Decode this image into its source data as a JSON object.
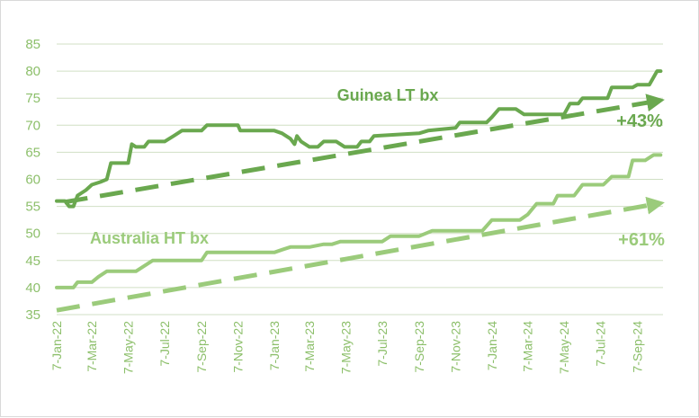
{
  "colors": {
    "guinea": "#6aa84f",
    "australia": "#9bcb7b",
    "axis_text": "#8cbf6a",
    "grid": "#d0dfc4"
  },
  "chart_data": {
    "type": "line",
    "title": "",
    "xlabel": "",
    "ylabel": "",
    "ylim": [
      35,
      85
    ],
    "yticks": [
      35,
      40,
      45,
      50,
      55,
      60,
      65,
      70,
      75,
      80,
      85
    ],
    "x_start": "2022-01-07",
    "x_end": "2024-10-20",
    "xtick_labels": [
      "7-Jan-22",
      "7-Mar-22",
      "7-May-22",
      "7-Jul-22",
      "7-Sep-22",
      "7-Nov-22",
      "7-Jan-23",
      "7-Mar-23",
      "7-May-23",
      "7-Jul-23",
      "7-Sep-23",
      "7-Nov-23",
      "7-Jan-24",
      "7-Mar-24",
      "7-May-24",
      "7-Jul-24",
      "7-Sep-24"
    ],
    "xtick_dates": [
      "2022-01-07",
      "2022-03-07",
      "2022-05-07",
      "2022-07-07",
      "2022-09-07",
      "2022-11-07",
      "2023-01-07",
      "2023-03-07",
      "2023-05-07",
      "2023-07-07",
      "2023-09-07",
      "2023-11-07",
      "2024-01-07",
      "2024-03-07",
      "2024-05-07",
      "2024-07-07",
      "2024-09-07"
    ],
    "grid": "horizontal",
    "series": [
      {
        "name": "Guinea LT bx",
        "color": "#6aa84f",
        "points": [
          [
            "2022-01-07",
            56
          ],
          [
            "2022-01-21",
            56
          ],
          [
            "2022-01-28",
            55
          ],
          [
            "2022-02-04",
            55
          ],
          [
            "2022-02-11",
            57
          ],
          [
            "2022-02-25",
            58
          ],
          [
            "2022-03-07",
            59
          ],
          [
            "2022-03-21",
            59.5
          ],
          [
            "2022-04-01",
            60
          ],
          [
            "2022-04-08",
            63
          ],
          [
            "2022-05-07",
            63
          ],
          [
            "2022-05-13",
            66.5
          ],
          [
            "2022-05-20",
            66
          ],
          [
            "2022-06-03",
            66
          ],
          [
            "2022-06-10",
            67
          ],
          [
            "2022-07-07",
            67
          ],
          [
            "2022-07-22",
            68
          ],
          [
            "2022-08-05",
            69
          ],
          [
            "2022-09-07",
            69
          ],
          [
            "2022-09-16",
            70
          ],
          [
            "2022-11-07",
            70
          ],
          [
            "2022-11-11",
            69
          ],
          [
            "2023-01-07",
            69
          ],
          [
            "2023-01-20",
            68.5
          ],
          [
            "2023-02-03",
            67.5
          ],
          [
            "2023-02-10",
            66.5
          ],
          [
            "2023-02-14",
            68
          ],
          [
            "2023-02-21",
            67
          ],
          [
            "2023-03-07",
            66
          ],
          [
            "2023-03-21",
            66
          ],
          [
            "2023-03-31",
            67
          ],
          [
            "2023-04-21",
            67
          ],
          [
            "2023-05-05",
            66
          ],
          [
            "2023-05-26",
            66
          ],
          [
            "2023-06-02",
            67
          ],
          [
            "2023-06-16",
            67
          ],
          [
            "2023-06-23",
            68
          ],
          [
            "2023-09-07",
            68.5
          ],
          [
            "2023-09-22",
            69
          ],
          [
            "2023-11-07",
            69.5
          ],
          [
            "2023-11-14",
            70.5
          ],
          [
            "2023-12-29",
            70.5
          ],
          [
            "2024-01-07",
            71.5
          ],
          [
            "2024-01-19",
            73
          ],
          [
            "2024-02-16",
            73
          ],
          [
            "2024-03-01",
            72
          ],
          [
            "2024-05-07",
            72
          ],
          [
            "2024-05-17",
            74
          ],
          [
            "2024-05-31",
            74
          ],
          [
            "2024-06-07",
            75
          ],
          [
            "2024-07-19",
            75
          ],
          [
            "2024-07-26",
            77
          ],
          [
            "2024-08-30",
            77
          ],
          [
            "2024-09-07",
            77.5
          ],
          [
            "2024-09-27",
            77.5
          ],
          [
            "2024-10-10",
            80
          ],
          [
            "2024-10-16",
            80
          ]
        ],
        "trend": [
          [
            "2022-01-20",
            55.8
          ],
          [
            "2024-10-20",
            74.5
          ]
        ],
        "change_label": "+43%"
      },
      {
        "name": "Australia HT bx",
        "color": "#9bcb7b",
        "points": [
          [
            "2022-01-07",
            40
          ],
          [
            "2022-02-04",
            40
          ],
          [
            "2022-02-11",
            41
          ],
          [
            "2022-03-07",
            41
          ],
          [
            "2022-03-18",
            42
          ],
          [
            "2022-04-01",
            43
          ],
          [
            "2022-05-07",
            43
          ],
          [
            "2022-05-20",
            43
          ],
          [
            "2022-06-03",
            44
          ],
          [
            "2022-06-17",
            45
          ],
          [
            "2022-09-07",
            45
          ],
          [
            "2022-09-16",
            46.5
          ],
          [
            "2022-11-07",
            46.5
          ],
          [
            "2023-01-07",
            46.5
          ],
          [
            "2023-01-20",
            47
          ],
          [
            "2023-02-03",
            47.5
          ],
          [
            "2023-03-07",
            47.5
          ],
          [
            "2023-03-31",
            48
          ],
          [
            "2023-04-14",
            48
          ],
          [
            "2023-04-28",
            48.5
          ],
          [
            "2023-07-07",
            48.5
          ],
          [
            "2023-07-21",
            49.5
          ],
          [
            "2023-09-07",
            49.5
          ],
          [
            "2023-09-29",
            50.5
          ],
          [
            "2023-11-07",
            50.5
          ],
          [
            "2023-12-22",
            50.5
          ],
          [
            "2024-01-07",
            52.5
          ],
          [
            "2024-02-23",
            52.5
          ],
          [
            "2024-03-07",
            53.5
          ],
          [
            "2024-03-22",
            55.5
          ],
          [
            "2024-04-19",
            55.5
          ],
          [
            "2024-04-26",
            57
          ],
          [
            "2024-05-24",
            57
          ],
          [
            "2024-06-07",
            59
          ],
          [
            "2024-07-12",
            59
          ],
          [
            "2024-07-26",
            60.5
          ],
          [
            "2024-08-23",
            60.5
          ],
          [
            "2024-08-30",
            63.5
          ],
          [
            "2024-09-20",
            63.5
          ],
          [
            "2024-10-04",
            64.5
          ],
          [
            "2024-10-16",
            64.5
          ]
        ],
        "trend": [
          [
            "2022-01-07",
            35.8
          ],
          [
            "2024-10-20",
            55.5
          ]
        ],
        "change_label": "+61%"
      }
    ]
  }
}
